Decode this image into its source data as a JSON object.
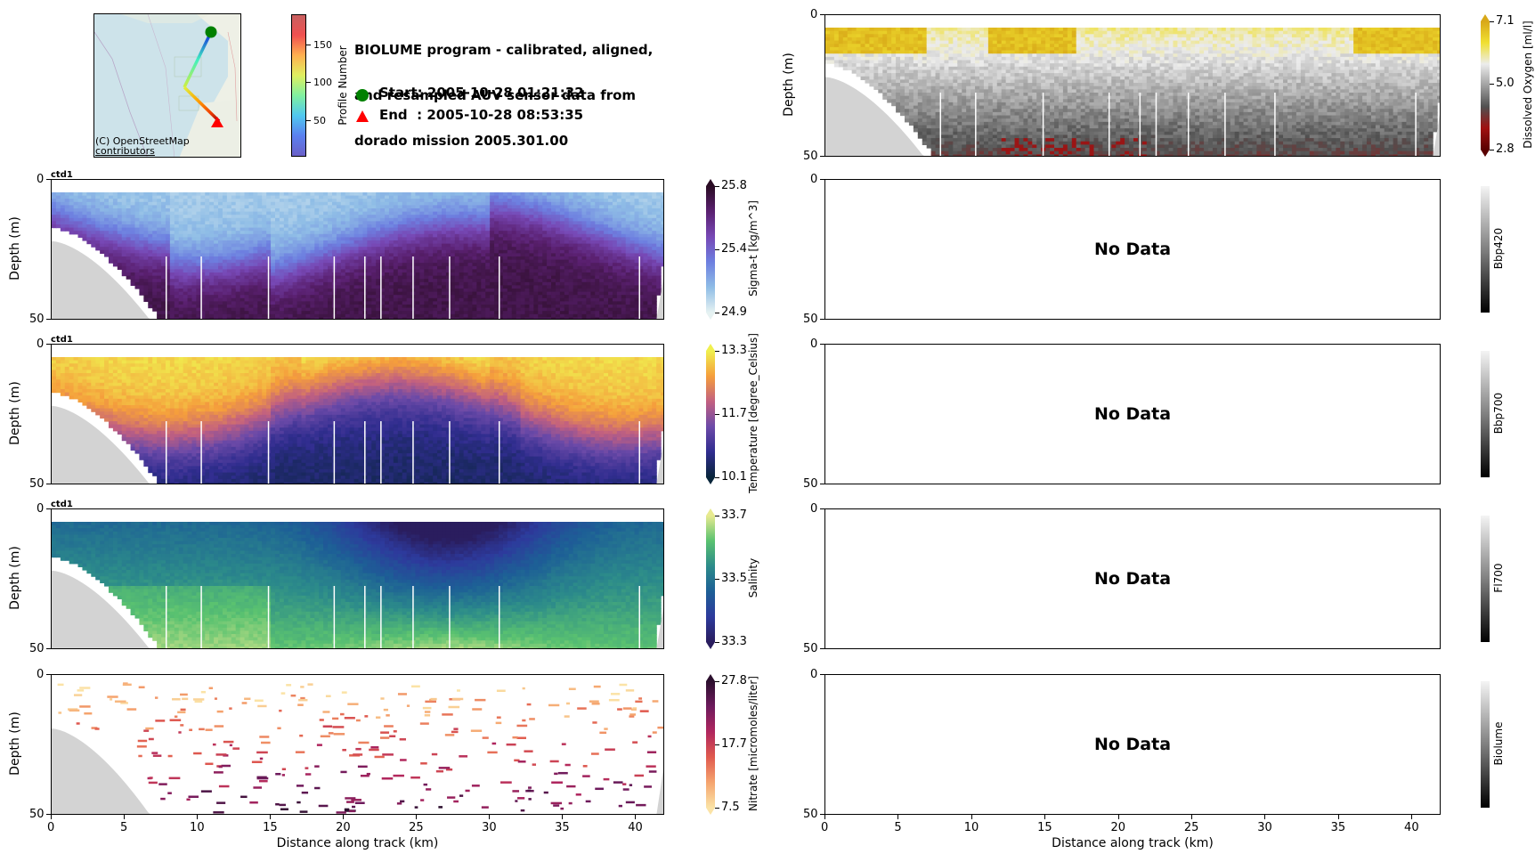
{
  "header": {
    "title_lines": [
      "BIOLUME program - calibrated, aligned,",
      "and resampled AUV sensor data from",
      "dorado mission 2005.301.00"
    ],
    "start_label": "Start: 2005-10-28 01:21:32",
    "end_label": "End  : 2005-10-28 08:53:35",
    "start_color": "#008000",
    "end_color": "#ff0000"
  },
  "map": {
    "attribution_lines": [
      "(C) OpenStreetMap",
      "contributors"
    ],
    "colorbar_label": "Profile Number",
    "colorbar_ticks": [
      "50",
      "100",
      "150"
    ],
    "colorbar_tick_values": [
      50,
      100,
      150
    ],
    "colorbar_range": [
      1,
      190
    ]
  },
  "chart_data": [
    {
      "type": "heatmap",
      "id": "sigma_t",
      "panel_tag": "ctd1",
      "colorbar_label": "Sigma-t [kg/m^3]",
      "colorbar_ticks": [
        "24.9",
        "25.4",
        "25.8"
      ],
      "colorbar_range": [
        24.9,
        25.8
      ],
      "ylabel": "Depth (m)",
      "yticks": [
        "0",
        "50"
      ],
      "ylim": [
        50,
        0
      ],
      "xlim": [
        0,
        42
      ],
      "colormap": [
        "#e6f2f2",
        "#8fbde6",
        "#6d7fe0",
        "#7748b5",
        "#5a2070",
        "#2a0c24"
      ]
    },
    {
      "type": "heatmap",
      "id": "temperature",
      "panel_tag": "ctd1",
      "colorbar_label": "Temperature [degree_Celsius]",
      "colorbar_ticks": [
        "10.1",
        "11.7",
        "13.3"
      ],
      "colorbar_range": [
        10.1,
        13.3
      ],
      "ylabel": "Depth (m)",
      "yticks": [
        "0",
        "50"
      ],
      "ylim": [
        50,
        0
      ],
      "xlim": [
        0,
        42
      ],
      "colormap": [
        "#08253a",
        "#302d8f",
        "#6c4aa8",
        "#c26080",
        "#f59e3c",
        "#f0f04f"
      ]
    },
    {
      "type": "heatmap",
      "id": "salinity",
      "panel_tag": "ctd1",
      "colorbar_label": "Salinity",
      "colorbar_ticks": [
        "33.3",
        "33.5",
        "33.7"
      ],
      "colorbar_range": [
        33.3,
        33.7
      ],
      "ylabel": "Depth (m)",
      "yticks": [
        "0",
        "50"
      ],
      "ylim": [
        50,
        0
      ],
      "xlim": [
        0,
        42
      ],
      "colormap": [
        "#2a1d5e",
        "#2d3a9c",
        "#1d5f96",
        "#2c8b8a",
        "#5ac270",
        "#e8ea90"
      ]
    },
    {
      "type": "scatter",
      "id": "nitrate",
      "colorbar_label": "Nitrate [micromoles/liter]",
      "colorbar_ticks": [
        "7.5",
        "17.7",
        "27.8"
      ],
      "colorbar_range": [
        7.5,
        27.8
      ],
      "ylabel": "Depth (m)",
      "yticks": [
        "0",
        "50"
      ],
      "ylim": [
        50,
        0
      ],
      "xlim": [
        0,
        42
      ],
      "xlabel": "Distance along track (km)",
      "xticks": [
        "0",
        "5",
        "10",
        "15",
        "20",
        "25",
        "30",
        "35",
        "40"
      ],
      "xtick_values": [
        0,
        5,
        10,
        15,
        20,
        25,
        30,
        35,
        40
      ],
      "colormap": [
        "#fbe3a6",
        "#f5a46e",
        "#e05a4e",
        "#b0265e",
        "#6d1a5c",
        "#2c0f2e"
      ]
    },
    {
      "type": "heatmap",
      "id": "dissolved_oxygen",
      "colorbar_label": "Dissolved Oxygen [ml/l]",
      "colorbar_ticks": [
        "2.8",
        "5.0",
        "7.1"
      ],
      "colorbar_range": [
        2.8,
        7.1
      ],
      "ylabel": "Depth (m)",
      "yticks": [
        "0",
        "50"
      ],
      "ylim": [
        50,
        0
      ],
      "xlim": [
        0,
        42
      ],
      "colormap": [
        "#5a0000",
        "#a01010",
        "#505050",
        "#a0a0a0",
        "#ececec",
        "#f0e030",
        "#d8a818"
      ]
    },
    {
      "type": "heatmap",
      "id": "bbp420",
      "colorbar_label": "Bbp420",
      "message": "No Data",
      "yticks": [
        "0",
        "50"
      ],
      "ylim": [
        50,
        0
      ],
      "xlim": [
        0,
        42
      ]
    },
    {
      "type": "heatmap",
      "id": "bbp700",
      "colorbar_label": "Bbp700",
      "message": "No Data",
      "yticks": [
        "0",
        "50"
      ],
      "ylim": [
        50,
        0
      ],
      "xlim": [
        0,
        42
      ]
    },
    {
      "type": "heatmap",
      "id": "fl700",
      "colorbar_label": "Fl700",
      "message": "No Data",
      "yticks": [
        "0",
        "50"
      ],
      "ylim": [
        50,
        0
      ],
      "xlim": [
        0,
        42
      ]
    },
    {
      "type": "heatmap",
      "id": "biolume",
      "colorbar_label": "Biolume",
      "message": "No Data",
      "yticks": [
        "0",
        "50"
      ],
      "ylim": [
        50,
        0
      ],
      "xlim": [
        0,
        42
      ],
      "xlabel": "Distance along track (km)",
      "xticks": [
        "0",
        "5",
        "10",
        "15",
        "20",
        "25",
        "30",
        "35",
        "40"
      ],
      "xtick_values": [
        0,
        5,
        10,
        15,
        20,
        25,
        30,
        35,
        40
      ]
    }
  ]
}
